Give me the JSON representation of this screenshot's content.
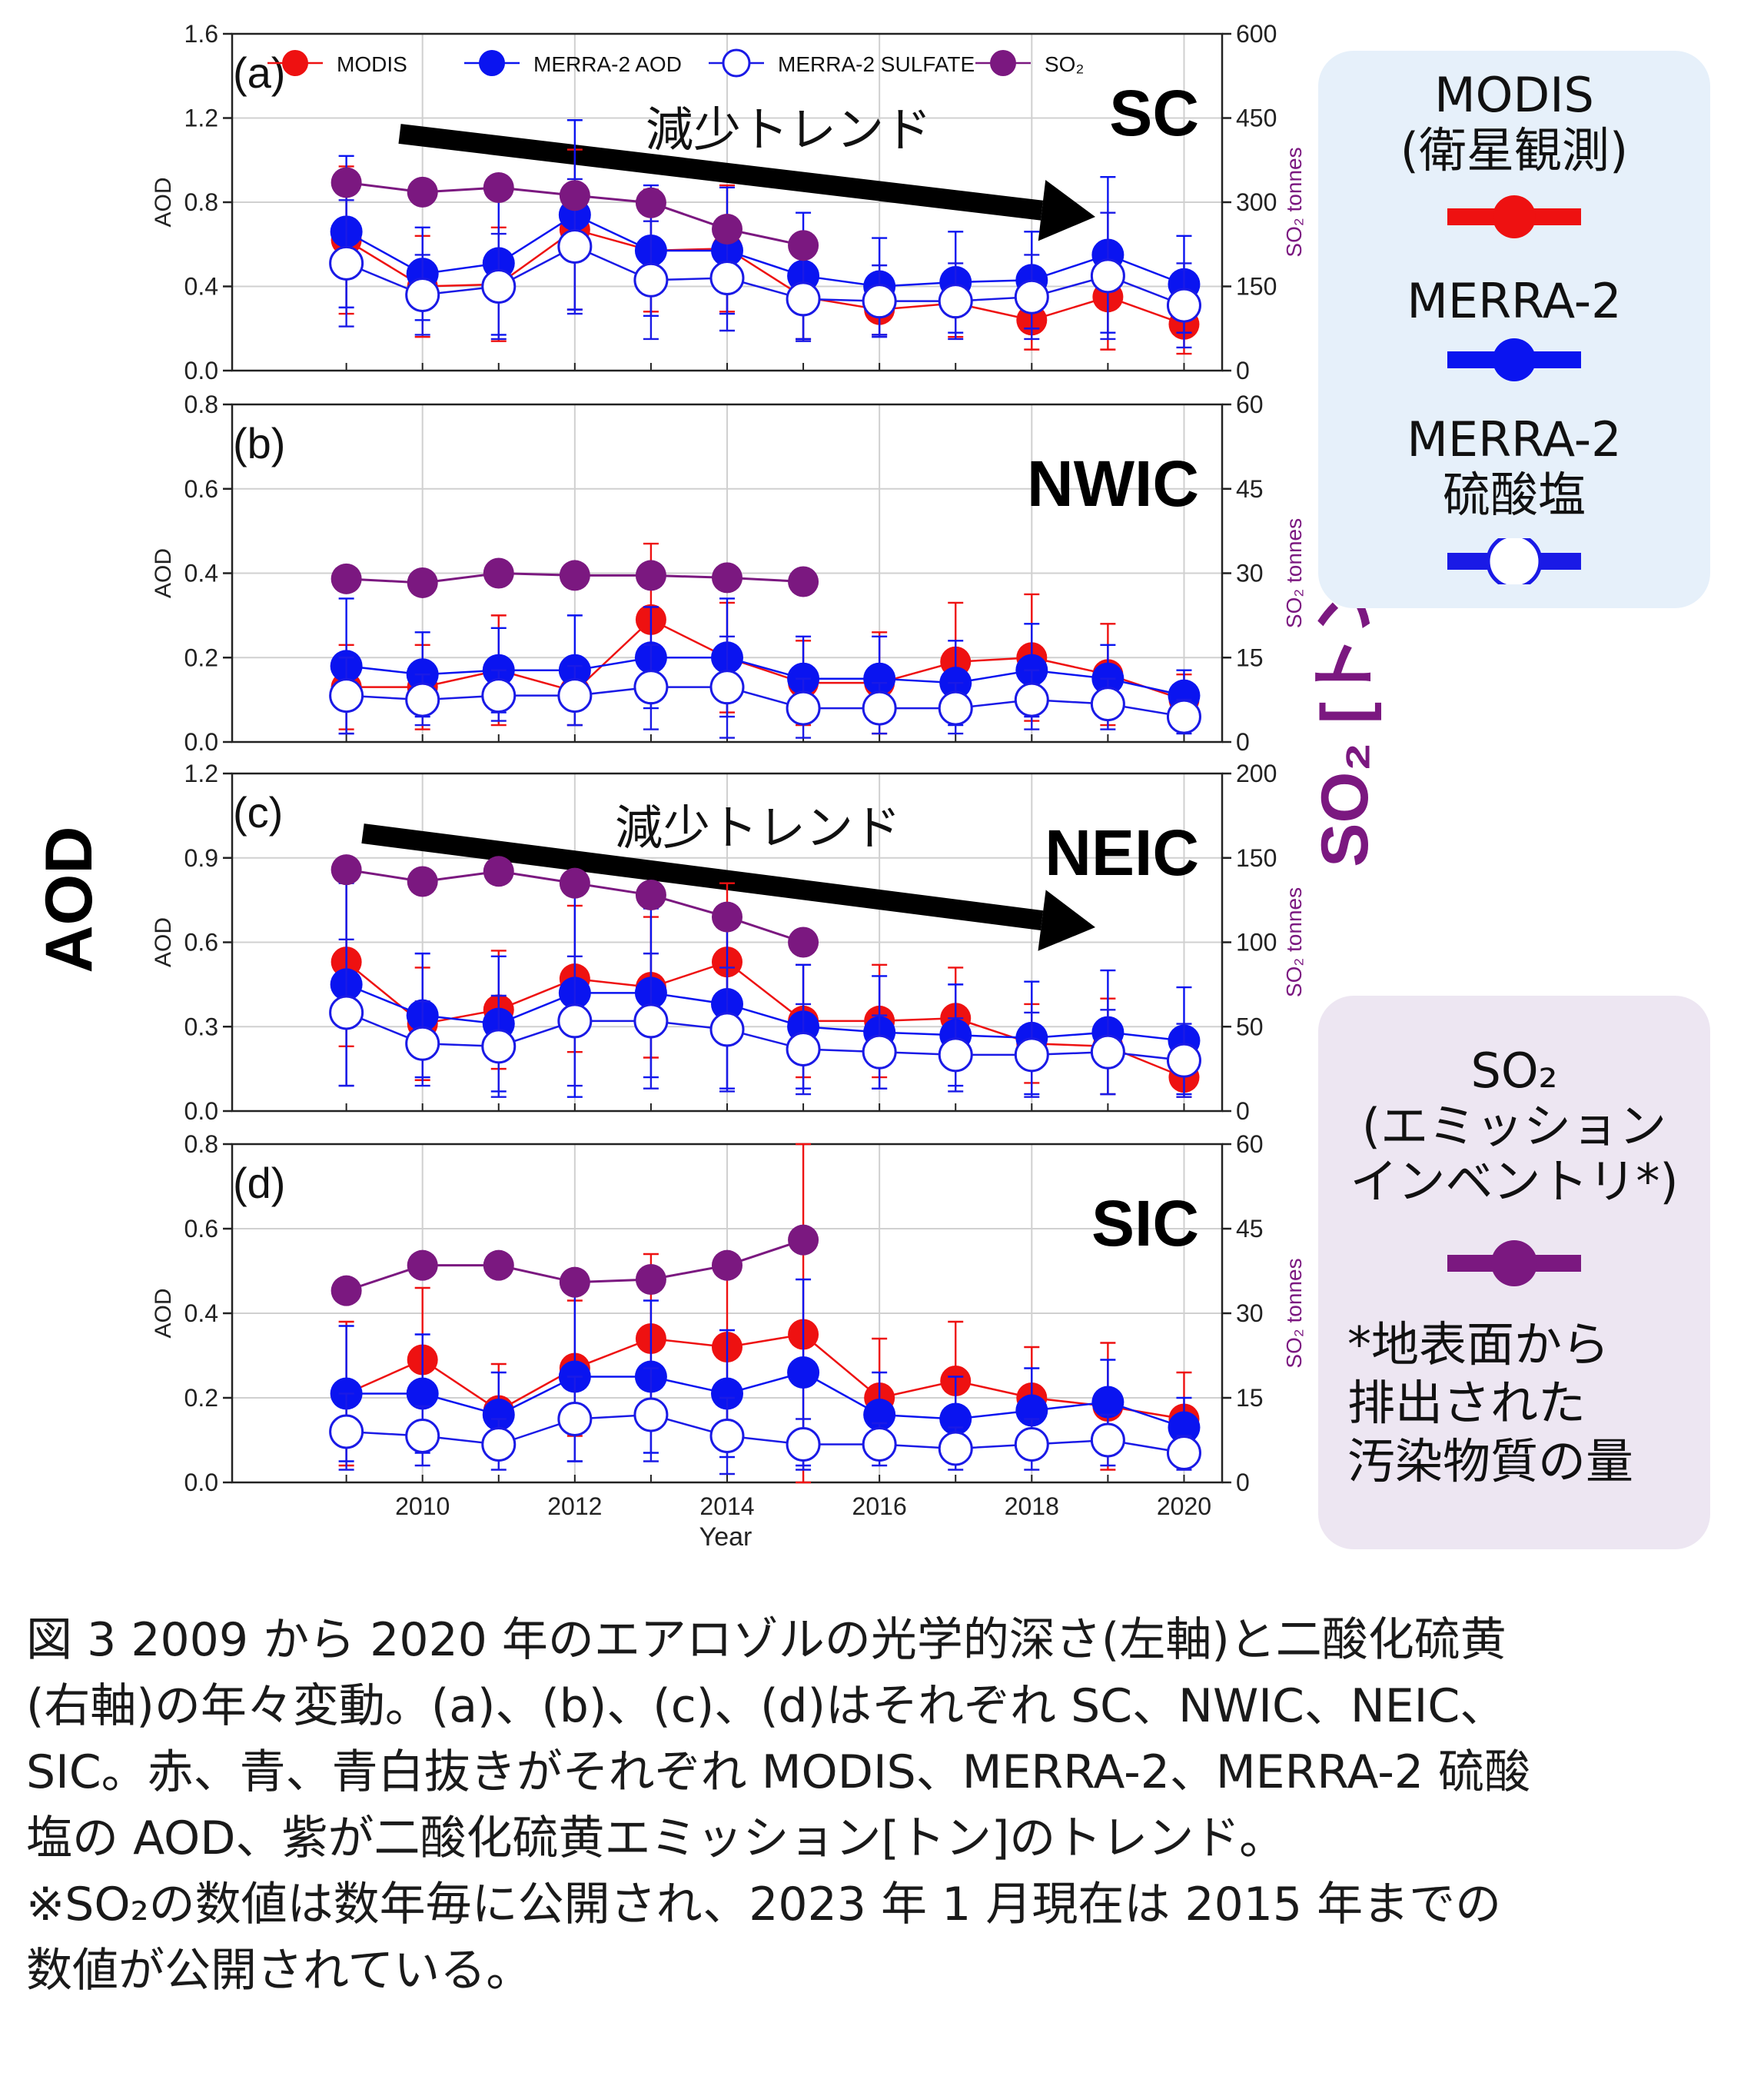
{
  "figure": {
    "left_axis_label": "AOD",
    "right_axis_label": "SO₂ [トン]",
    "legend_top": {
      "series_names": [
        "MODIS",
        "MERRA-2 AOD",
        "MERRA-2 SULFATE",
        "SO₂"
      ]
    },
    "legend_side": {
      "modis": "MODIS\n(衛星観測)",
      "merra2": "MERRA-2",
      "sulfate": "MERRA-2\n硫酸塩",
      "so2": "SO₂\n(エミッション\nインベントリ*)",
      "footnote": "*地表面から\n排出された\n汚染物質の量"
    },
    "colors": {
      "modis": "#ee1111",
      "merra2": "#0a14f0",
      "sulfate": "#1a1ae6",
      "so2": "#7b1880",
      "arrow": "#000000",
      "legend_blue_bg": "#e6f0fa",
      "legend_purple_bg": "#ede6f2"
    }
  },
  "chart_data": [
    {
      "type": "line",
      "panel": "(a)",
      "region": "SC",
      "annotation": "減少トレンド",
      "has_trend_arrow": true,
      "xlabel": "Year",
      "ylabel_left": "AOD",
      "ylabel_right": "SO₂ tonnes",
      "x": [
        2009,
        2010,
        2011,
        2012,
        2013,
        2014,
        2015,
        2016,
        2017,
        2018,
        2019,
        2020
      ],
      "xlim": [
        2007.5,
        2020.5
      ],
      "ylim_left": [
        0,
        1.6
      ],
      "ylim_right": [
        0,
        600
      ],
      "yticks_left": [
        "0.0",
        "0.4",
        "0.8",
        "1.2",
        "1.6"
      ],
      "yticks_right": [
        "0",
        "150",
        "300",
        "450",
        "600"
      ],
      "series": [
        {
          "name": "MODIS",
          "values": [
            0.62,
            0.4,
            0.41,
            0.67,
            0.57,
            0.58,
            0.35,
            0.29,
            0.32,
            0.24,
            0.35,
            0.22
          ],
          "err": [
            0.35,
            0.24,
            0.27,
            0.38,
            0.29,
            0.3,
            0.2,
            0.12,
            0.16,
            0.14,
            0.25,
            0.14
          ]
        },
        {
          "name": "MERRA-2 AOD",
          "values": [
            0.66,
            0.46,
            0.51,
            0.74,
            0.57,
            0.57,
            0.45,
            0.4,
            0.42,
            0.43,
            0.55,
            0.41
          ],
          "err": [
            0.36,
            0.22,
            0.34,
            0.45,
            0.31,
            0.3,
            0.3,
            0.23,
            0.24,
            0.23,
            0.37,
            0.23
          ]
        },
        {
          "name": "MERRA-2 SULFATE",
          "values": [
            0.51,
            0.36,
            0.4,
            0.59,
            0.43,
            0.44,
            0.34,
            0.33,
            0.33,
            0.35,
            0.45,
            0.31
          ],
          "err": [
            0.3,
            0.19,
            0.25,
            0.32,
            0.28,
            0.25,
            0.2,
            0.17,
            0.18,
            0.2,
            0.3,
            0.2
          ]
        },
        {
          "name": "SO₂",
          "axis": "right",
          "values": [
            335,
            318,
            326,
            312,
            299,
            252,
            223,
            null,
            null,
            null,
            null,
            null
          ]
        }
      ]
    },
    {
      "type": "line",
      "panel": "(b)",
      "region": "NWIC",
      "annotation": "",
      "has_trend_arrow": false,
      "xlabel": "Year",
      "ylabel_left": "AOD",
      "ylabel_right": "SO₂ tonnes",
      "x": [
        2009,
        2010,
        2011,
        2012,
        2013,
        2014,
        2015,
        2016,
        2017,
        2018,
        2019,
        2020
      ],
      "xlim": [
        2007.5,
        2020.5
      ],
      "ylim_left": [
        0,
        0.8
      ],
      "ylim_right": [
        0,
        60
      ],
      "yticks_left": [
        "0.0",
        "0.2",
        "0.4",
        "0.6",
        "0.8"
      ],
      "yticks_right": [
        "0",
        "15",
        "30",
        "45",
        "60"
      ],
      "series": [
        {
          "name": "MODIS",
          "values": [
            0.13,
            0.13,
            0.17,
            0.12,
            0.29,
            0.2,
            0.14,
            0.14,
            0.19,
            0.2,
            0.16,
            0.1
          ],
          "err": [
            0.1,
            0.1,
            0.13,
            0.08,
            0.18,
            0.13,
            0.1,
            0.12,
            0.14,
            0.15,
            0.12,
            0.06
          ]
        },
        {
          "name": "MERRA-2 AOD",
          "values": [
            0.18,
            0.16,
            0.17,
            0.17,
            0.2,
            0.2,
            0.15,
            0.15,
            0.14,
            0.17,
            0.15,
            0.11
          ],
          "err": [
            0.16,
            0.1,
            0.1,
            0.13,
            0.12,
            0.14,
            0.1,
            0.1,
            0.1,
            0.11,
            0.08,
            0.06
          ]
        },
        {
          "name": "MERRA-2 SULFATE",
          "values": [
            0.11,
            0.1,
            0.11,
            0.11,
            0.13,
            0.13,
            0.08,
            0.08,
            0.08,
            0.1,
            0.09,
            0.06
          ],
          "err": [
            0.09,
            0.06,
            0.06,
            0.07,
            0.1,
            0.12,
            0.07,
            0.06,
            0.06,
            0.07,
            0.06,
            0.04
          ]
        },
        {
          "name": "SO₂",
          "axis": "right",
          "values": [
            29,
            28.3,
            30,
            29.6,
            29.6,
            29.2,
            28.5,
            null,
            null,
            null,
            null,
            null
          ]
        }
      ]
    },
    {
      "type": "line",
      "panel": "(c)",
      "region": "NEIC",
      "annotation": "減少トレンド",
      "has_trend_arrow": true,
      "xlabel": "Year",
      "ylabel_left": "AOD",
      "ylabel_right": "SO₂ tonnes",
      "x": [
        2009,
        2010,
        2011,
        2012,
        2013,
        2014,
        2015,
        2016,
        2017,
        2018,
        2019,
        2020
      ],
      "xlim": [
        2007.5,
        2020.5
      ],
      "ylim_left": [
        0,
        1.2
      ],
      "ylim_right": [
        0,
        200
      ],
      "yticks_left": [
        "0.0",
        "0.3",
        "0.6",
        "0.9",
        "1.2"
      ],
      "yticks_right": [
        "0",
        "50",
        "100",
        "150",
        "200"
      ],
      "series": [
        {
          "name": "MODIS",
          "values": [
            0.53,
            0.31,
            0.36,
            0.47,
            0.44,
            0.53,
            0.32,
            0.32,
            0.33,
            0.24,
            0.23,
            0.12
          ],
          "err": [
            0.3,
            0.2,
            0.21,
            0.26,
            0.25,
            0.28,
            0.2,
            0.2,
            0.18,
            0.14,
            0.17,
            0.07
          ]
        },
        {
          "name": "MERRA-2 AOD",
          "values": [
            0.45,
            0.34,
            0.31,
            0.42,
            0.42,
            0.38,
            0.3,
            0.28,
            0.27,
            0.26,
            0.28,
            0.25
          ],
          "err": [
            0.36,
            0.22,
            0.24,
            0.37,
            0.3,
            0.3,
            0.22,
            0.2,
            0.18,
            0.2,
            0.22,
            0.19
          ]
        },
        {
          "name": "MERRA-2 SULFATE",
          "values": [
            0.35,
            0.24,
            0.23,
            0.32,
            0.32,
            0.29,
            0.22,
            0.21,
            0.2,
            0.2,
            0.21,
            0.18
          ],
          "err": [
            0.26,
            0.15,
            0.18,
            0.23,
            0.24,
            0.22,
            0.16,
            0.13,
            0.13,
            0.15,
            0.15,
            0.13
          ]
        },
        {
          "name": "SO₂",
          "axis": "right",
          "values": [
            143,
            136,
            142,
            135,
            128,
            115,
            100,
            null,
            null,
            null,
            null,
            null
          ]
        }
      ]
    },
    {
      "type": "line",
      "panel": "(d)",
      "region": "SIC",
      "annotation": "",
      "has_trend_arrow": false,
      "xlabel": "Year",
      "ylabel_left": "AOD",
      "ylabel_right": "SO₂ tonnes",
      "x": [
        2009,
        2010,
        2011,
        2012,
        2013,
        2014,
        2015,
        2016,
        2017,
        2018,
        2019,
        2020
      ],
      "xlim": [
        2007.5,
        2020.5
      ],
      "ylim_left": [
        0,
        0.8
      ],
      "ylim_right": [
        0,
        60
      ],
      "yticks_left": [
        "0.0",
        "0.2",
        "0.4",
        "0.6",
        "0.8"
      ],
      "yticks_right": [
        "0",
        "15",
        "30",
        "45",
        "60"
      ],
      "series": [
        {
          "name": "MODIS",
          "values": [
            0.21,
            0.29,
            0.17,
            0.27,
            0.34,
            0.32,
            0.35,
            0.2,
            0.24,
            0.2,
            0.18,
            0.15
          ],
          "err": [
            0.17,
            0.17,
            0.11,
            0.16,
            0.2,
            0.19,
            0.45,
            0.14,
            0.14,
            0.12,
            0.15,
            0.11
          ]
        },
        {
          "name": "MERRA-2 AOD",
          "values": [
            0.21,
            0.21,
            0.16,
            0.25,
            0.25,
            0.21,
            0.26,
            0.16,
            0.15,
            0.17,
            0.19,
            0.13
          ],
          "err": [
            0.16,
            0.14,
            0.1,
            0.2,
            0.18,
            0.15,
            0.22,
            0.1,
            0.1,
            0.1,
            0.1,
            0.07
          ]
        },
        {
          "name": "MERRA-2 SULFATE",
          "values": [
            0.12,
            0.11,
            0.09,
            0.15,
            0.16,
            0.11,
            0.09,
            0.09,
            0.08,
            0.09,
            0.1,
            0.07
          ],
          "err": [
            0.09,
            0.07,
            0.06,
            0.1,
            0.11,
            0.09,
            0.06,
            0.05,
            0.05,
            0.06,
            0.06,
            0.04
          ]
        },
        {
          "name": "SO₂",
          "axis": "right",
          "values": [
            34,
            38.5,
            38.5,
            35.5,
            36,
            38.5,
            43,
            null,
            null,
            null,
            null,
            null
          ]
        }
      ]
    }
  ],
  "caption": {
    "lines": [
      "図 3 2009 から 2020 年のエアロゾルの光学的深さ(左軸)と二酸化硫黄",
      "(右軸)の年々変動。(a)、(b)、(c)、(d)はそれぞれ SC、NWIC、NEIC、",
      "SIC。赤、青、青白抜きがそれぞれ MODIS、MERRA-2、MERRA-2 硫酸",
      "塩の AOD、紫が二酸化硫黄エミッション[トン]のトレンド。",
      "※SO₂の数値は数年毎に公開され、2023 年 1 月現在は 2015 年までの",
      "数値が公開されている。"
    ]
  }
}
